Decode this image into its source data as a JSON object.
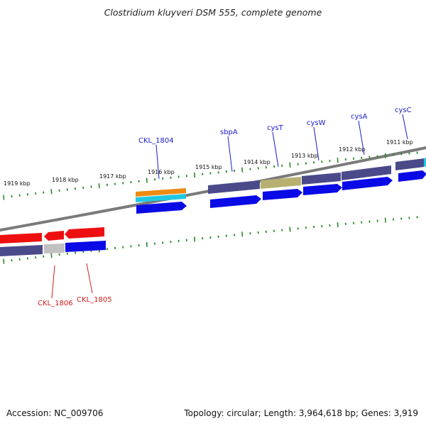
{
  "title": "Clostridium kluyveri DSM 555, complete genome",
  "footer": {
    "accession": "Accession: NC_009706",
    "summary": "Topology: circular; Length: 3,964,618 bp; Genes: 3,919"
  },
  "ticks_kbp": [
    "1911 kbp",
    "1912 kbp",
    "1913 kbp",
    "1914 kbp",
    "1915 kbp",
    "1916 kbp",
    "1917 kbp",
    "1918 kbp",
    "1919 kbp"
  ],
  "gene_labels_forward": [
    "CKL_1804",
    "sbpA",
    "cysT",
    "cysW",
    "cysA",
    "cysC"
  ],
  "gene_labels_reverse": [
    "CKL_1806",
    "CKL_1805"
  ],
  "colors": {
    "forward_label": "#1a1acc",
    "reverse_label": "#d41a1a",
    "cds_blue": "#0a0ae6",
    "cds_red": "#ee1010",
    "tick_green": "#2a8a2a",
    "backbone": "#7a7a7a",
    "feature_purple": "#4a4a8a",
    "feature_olive": "#b8b070",
    "feature_orange": "#f08a10",
    "feature_cyan": "#20c8e0",
    "feature_grey": "#c0c0c0"
  }
}
